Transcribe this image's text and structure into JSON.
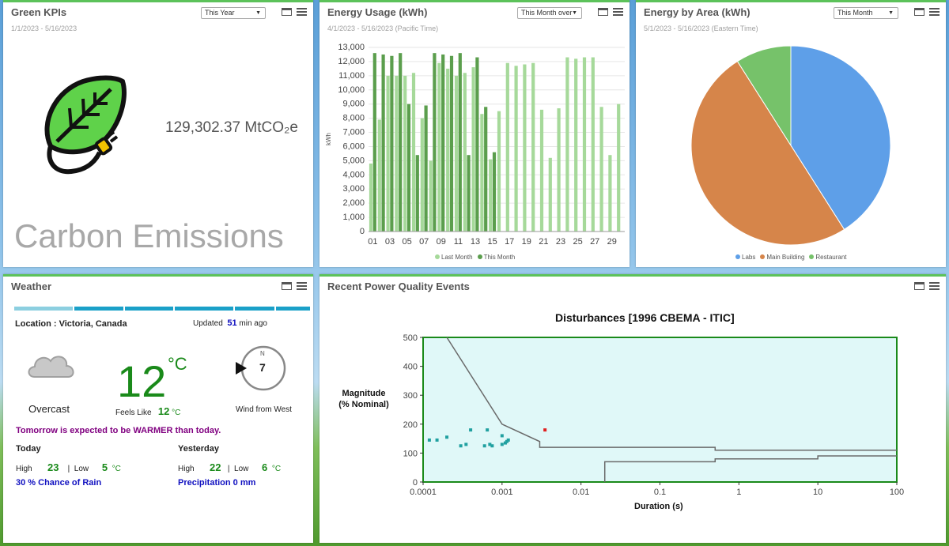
{
  "green_kpis": {
    "title": "Green KPIs",
    "range": "1/1/2023 - 5/16/2023",
    "period": "This Year",
    "value": "129,302.37 MtCO₂e",
    "label": "Carbon Emissions"
  },
  "energy_usage": {
    "title": "Energy Usage (kWh)",
    "range": "4/1/2023 - 5/16/2023 (Pacific Time)",
    "period": "This Month over",
    "ylabel": "kWh",
    "legend_last": "Last Month",
    "legend_this": "This Month"
  },
  "energy_area": {
    "title": "Energy by Area (kWh)",
    "range": "5/1/2023 - 5/16/2023 (Eastern Time)",
    "period": "This Month",
    "legend": [
      "Labs",
      "Main Building",
      "Restaurant"
    ]
  },
  "weather": {
    "title": "Weather",
    "location": "Location : Victoria, Canada",
    "updated_prefix": "Updated",
    "updated_value": "51",
    "updated_suffix": "min ago",
    "condition": "Overcast",
    "temp": "12",
    "temp_unit": "°C",
    "feels_like_label": "Feels Like",
    "feels_like": "12",
    "feels_unit": "°C",
    "wind_compass": "N",
    "wind_speed": "7",
    "wind_label": "Wind from West",
    "forecast": "Tomorrow is expected to be WARMER than today.",
    "today_label": "Today",
    "yesterday_label": "Yesterday",
    "high_label": "High",
    "low_label": "Low",
    "sep": "|",
    "today_high": "23",
    "today_low": "5",
    "yesterday_high": "22",
    "yesterday_low": "6",
    "unit": "°C",
    "rain": "30 % Chance of Rain",
    "precip": "Precipitation 0 mm"
  },
  "power_quality": {
    "title": "Recent Power Quality Events",
    "chart_title": "Disturbances [1996 CBEMA - ITIC]",
    "ylabel_1": "Magnitude",
    "ylabel_2": "(% Nominal)",
    "xlabel": "Duration (s)"
  },
  "chart_data": [
    {
      "type": "bar",
      "title": "Energy Usage (kWh)",
      "ylabel": "kWh",
      "ylim": [
        0,
        13000
      ],
      "ytick_labels": [
        "0",
        "1,000",
        "2,000",
        "3,000",
        "4,000",
        "5,000",
        "6,000",
        "7,000",
        "8,000",
        "9,000",
        "10,000",
        "11,000",
        "12,000",
        "13,000"
      ],
      "xtick_labels": [
        "01",
        "03",
        "05",
        "07",
        "09",
        "11",
        "13",
        "15",
        "17",
        "19",
        "21",
        "23",
        "25",
        "27",
        "29"
      ],
      "categories": [
        "01",
        "02",
        "03",
        "04",
        "05",
        "06",
        "07",
        "08",
        "09",
        "10",
        "11",
        "12",
        "13",
        "14",
        "15",
        "16",
        "17",
        "18",
        "19",
        "20",
        "21",
        "22",
        "23",
        "24",
        "25",
        "26",
        "27",
        "28",
        "29",
        "30"
      ],
      "series": [
        {
          "name": "Last Month",
          "color": "#a6d99a",
          "values": [
            4800,
            7900,
            11000,
            11000,
            11000,
            11200,
            8000,
            5000,
            11900,
            11500,
            11000,
            11200,
            11600,
            8300,
            5100,
            8500,
            11900,
            11700,
            11800,
            11900,
            8600,
            5200,
            8700,
            12300,
            12200,
            12300,
            12300,
            8800,
            5400,
            9000
          ]
        },
        {
          "name": "This Month",
          "color": "#5b9e4d",
          "values": [
            12600,
            12500,
            12400,
            12600,
            9000,
            5400,
            8900,
            12600,
            12500,
            12400,
            12600,
            5400,
            12300,
            8800,
            5600,
            null,
            null,
            null,
            null,
            null,
            null,
            null,
            null,
            null,
            null,
            null,
            null,
            null,
            null,
            null
          ]
        }
      ],
      "legend": "bottom",
      "grid": true
    },
    {
      "type": "pie",
      "title": "Energy by Area (kWh)",
      "categories": [
        "Labs",
        "Main Building",
        "Restaurant"
      ],
      "values": [
        41,
        50,
        9
      ],
      "colors": [
        "#5e9fe8",
        "#d6854a",
        "#76c26a"
      ],
      "legend": "bottom"
    },
    {
      "type": "scatter",
      "title": "Disturbances [1996 CBEMA - ITIC]",
      "xlabel": "Duration (s)",
      "ylabel": "Magnitude (% Nominal)",
      "xscale": "log",
      "xlim": [
        0.0001,
        100
      ],
      "ylim": [
        0,
        500
      ],
      "xtick_labels": [
        "0.0001",
        "0.001",
        "0.01",
        "0.1",
        "1",
        "10",
        "100"
      ],
      "ytick_labels": [
        "0",
        "100",
        "200",
        "300",
        "400",
        "500"
      ],
      "upper_curve": [
        [
          0.0002,
          500
        ],
        [
          0.001,
          200
        ],
        [
          0.003,
          140
        ],
        [
          0.003,
          120
        ],
        [
          0.5,
          120
        ],
        [
          0.5,
          110
        ],
        [
          100,
          110
        ]
      ],
      "lower_curve": [
        [
          0.02,
          0
        ],
        [
          0.02,
          70
        ],
        [
          0.5,
          70
        ],
        [
          0.5,
          80
        ],
        [
          10,
          80
        ],
        [
          10,
          90
        ],
        [
          100,
          90
        ]
      ],
      "points": [
        {
          "x": 0.00012,
          "y": 145
        },
        {
          "x": 0.00015,
          "y": 145
        },
        {
          "x": 0.0002,
          "y": 155
        },
        {
          "x": 0.0003,
          "y": 125
        },
        {
          "x": 0.00035,
          "y": 130
        },
        {
          "x": 0.0004,
          "y": 180
        },
        {
          "x": 0.0006,
          "y": 125
        },
        {
          "x": 0.00065,
          "y": 180
        },
        {
          "x": 0.0007,
          "y": 130
        },
        {
          "x": 0.00075,
          "y": 125
        },
        {
          "x": 0.001,
          "y": 160
        },
        {
          "x": 0.001,
          "y": 130
        },
        {
          "x": 0.0011,
          "y": 135
        },
        {
          "x": 0.00115,
          "y": 140
        },
        {
          "x": 0.0012,
          "y": 145
        }
      ],
      "alert_points": [
        {
          "x": 0.0035,
          "y": 180
        }
      ]
    }
  ],
  "colors": {
    "accent_green": "#5cc25a",
    "temp_green": "#1a8a1a",
    "forecast_purple": "#800080",
    "info_blue": "#1010c0",
    "cbema_bg": "#e0f8f8",
    "cbema_border": "#1a8a1a",
    "point": "#20a0a0",
    "alert_point": "#e02020"
  }
}
